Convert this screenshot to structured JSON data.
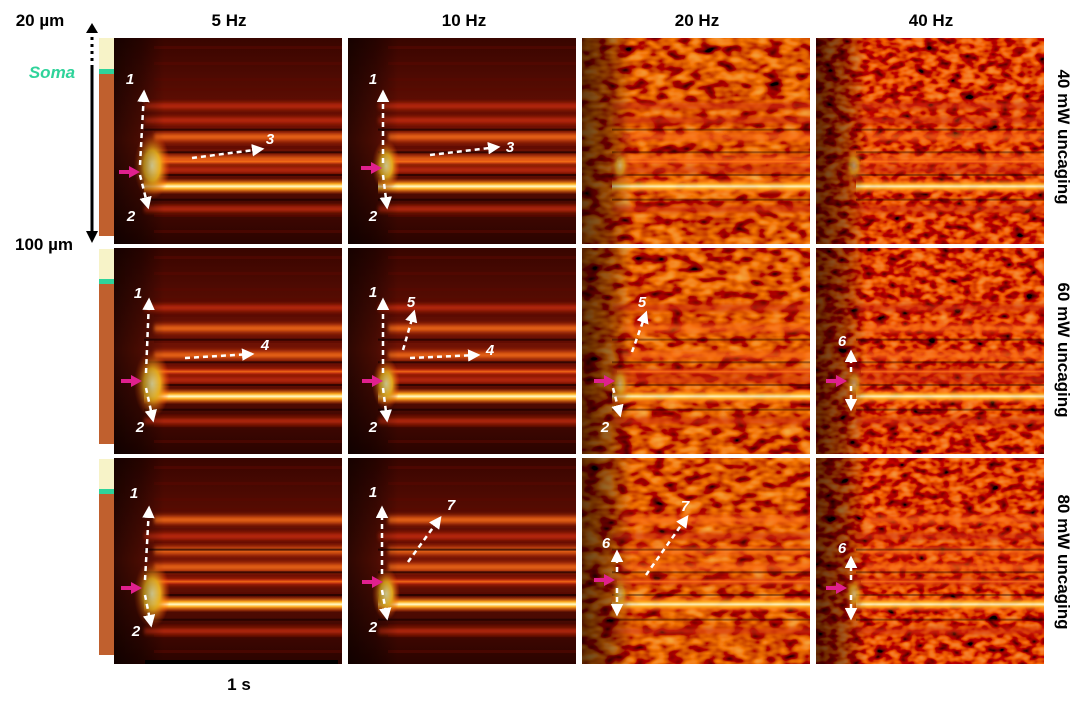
{
  "depth_top_label": "20 µm",
  "depth_bottom_label": "100 µm",
  "soma_label": "Soma",
  "columns": [
    "5 Hz",
    "10 Hz",
    "20 Hz",
    "40 Hz"
  ],
  "rows": [
    "40 mW uncaging",
    "60 mW uncaging",
    "80 mW uncaging"
  ],
  "scale_bar_label": "1 s",
  "arrow_labels": {
    "r0c0": [
      "1",
      "2",
      "3"
    ],
    "r0c1": [
      "1",
      "2",
      "3"
    ],
    "r1c0": [
      "1",
      "2",
      "4"
    ],
    "r1c1": [
      "1",
      "2",
      "5",
      "4"
    ],
    "r1c2": [
      "5",
      "2"
    ],
    "r1c3": [
      "6"
    ],
    "r2c0": [
      "1",
      "2"
    ],
    "r2c1": [
      "1",
      "2",
      "7"
    ],
    "r2c2": [
      "6",
      "7"
    ],
    "r2c3": [
      "6"
    ]
  },
  "colors": {
    "soma_marker": "#2fd39a",
    "dendrite_bar": "#c0602e",
    "soma_region": "#f7f3c8",
    "stimulus_arrow": "#e0208e",
    "heatmap_low": "#1a0000",
    "heatmap_mid": "#c0200a",
    "heatmap_high": "#fff4a0"
  }
}
